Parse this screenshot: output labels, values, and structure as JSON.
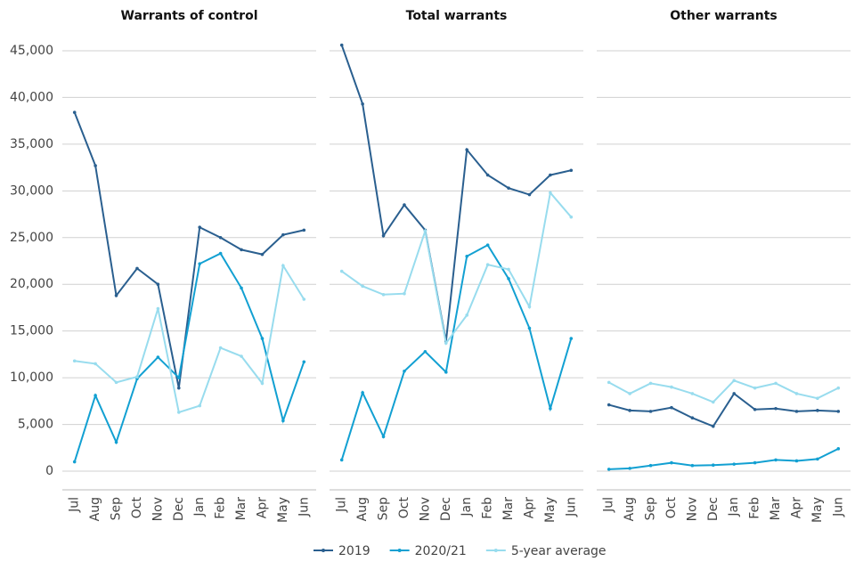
{
  "chart_data": [
    {
      "type": "line",
      "title": "Warrants of control",
      "categories": [
        "Jul",
        "Aug",
        "Sep",
        "Oct",
        "Nov",
        "Dec",
        "Jan",
        "Feb",
        "Mar",
        "Apr",
        "May",
        "Jun"
      ],
      "series": [
        {
          "name": "2019",
          "color": "#2a5f8f",
          "values": [
            38400,
            32700,
            18800,
            21700,
            20000,
            8900,
            26100,
            25000,
            23700,
            23200,
            25300,
            25800
          ]
        },
        {
          "name": "2020/21",
          "color": "#12a0d2",
          "values": [
            1000,
            8100,
            3100,
            9900,
            12200,
            10000,
            22200,
            23300,
            19600,
            14200,
            5400,
            11700
          ]
        },
        {
          "name": "5-year average",
          "color": "#98dcee",
          "values": [
            11800,
            11500,
            9500,
            10100,
            17400,
            6300,
            7000,
            13200,
            12300,
            9400,
            22000,
            18400
          ]
        }
      ],
      "ylim": [
        -2000,
        47000
      ],
      "yticks": [
        0,
        {
          "value": 5000,
          "label": "5,000"
        },
        {
          "value": 10000,
          "label": "10,000"
        },
        {
          "value": 15000,
          "label": "15,000"
        },
        {
          "value": 20000,
          "label": "20,000"
        },
        {
          "value": 25000,
          "label": "25,000"
        },
        {
          "value": 30000,
          "label": "30,000"
        },
        {
          "value": 35000,
          "label": "35,000"
        },
        {
          "value": 40000,
          "label": "40,000"
        },
        {
          "value": 45000,
          "label": "45,000"
        }
      ],
      "grid": true
    },
    {
      "type": "line",
      "title": "Total warrants",
      "categories": [
        "Jul",
        "Aug",
        "Sep",
        "Oct",
        "Nov",
        "Dec",
        "Jan",
        "Feb",
        "Mar",
        "Apr",
        "May",
        "Jun"
      ],
      "series": [
        {
          "color": "#2a5f8f",
          "values": [
            45600,
            39300,
            25200,
            28500,
            25800,
            13900,
            34400,
            31700,
            30300,
            29600,
            31700,
            32200
          ]
        },
        {
          "color": "#12a0d2",
          "values": [
            1200,
            8400,
            3700,
            10700,
            12800,
            10600,
            23000,
            24200,
            20600,
            15300,
            6700,
            14200
          ]
        },
        {
          "color": "#98dcee",
          "values": [
            21400,
            19800,
            18900,
            19000,
            25700,
            13700,
            16700,
            22100,
            21600,
            17600,
            29800,
            27200
          ]
        }
      ],
      "ylim": [
        -2000,
        47000
      ],
      "yticks": [
        0,
        5000,
        10000,
        15000,
        20000,
        25000,
        30000,
        35000,
        40000,
        45000
      ],
      "grid": true
    },
    {
      "type": "line",
      "title": "Other warrants",
      "categories": [
        "Jul",
        "Aug",
        "Sep",
        "Oct",
        "Nov",
        "Dec",
        "Jan",
        "Feb",
        "Mar",
        "Apr",
        "May",
        "Jun"
      ],
      "series": [
        {
          "color": "#2a5f8f",
          "values": [
            7100,
            6500,
            6400,
            6800,
            5700,
            4800,
            8300,
            6600,
            6700,
            6400,
            6500,
            6400
          ]
        },
        {
          "color": "#12a0d2",
          "values": [
            200,
            300,
            600,
            900,
            600,
            650,
            750,
            900,
            1200,
            1100,
            1300,
            2400
          ]
        },
        {
          "color": "#98dcee",
          "values": [
            9500,
            8300,
            9400,
            9000,
            8300,
            7400,
            9700,
            8900,
            9400,
            8300,
            7800,
            8900
          ]
        }
      ],
      "ylim": [
        -2000,
        47000
      ],
      "yticks": [
        0,
        5000,
        10000,
        15000,
        20000,
        25000,
        30000,
        35000,
        40000,
        45000
      ],
      "grid": true
    }
  ]
}
